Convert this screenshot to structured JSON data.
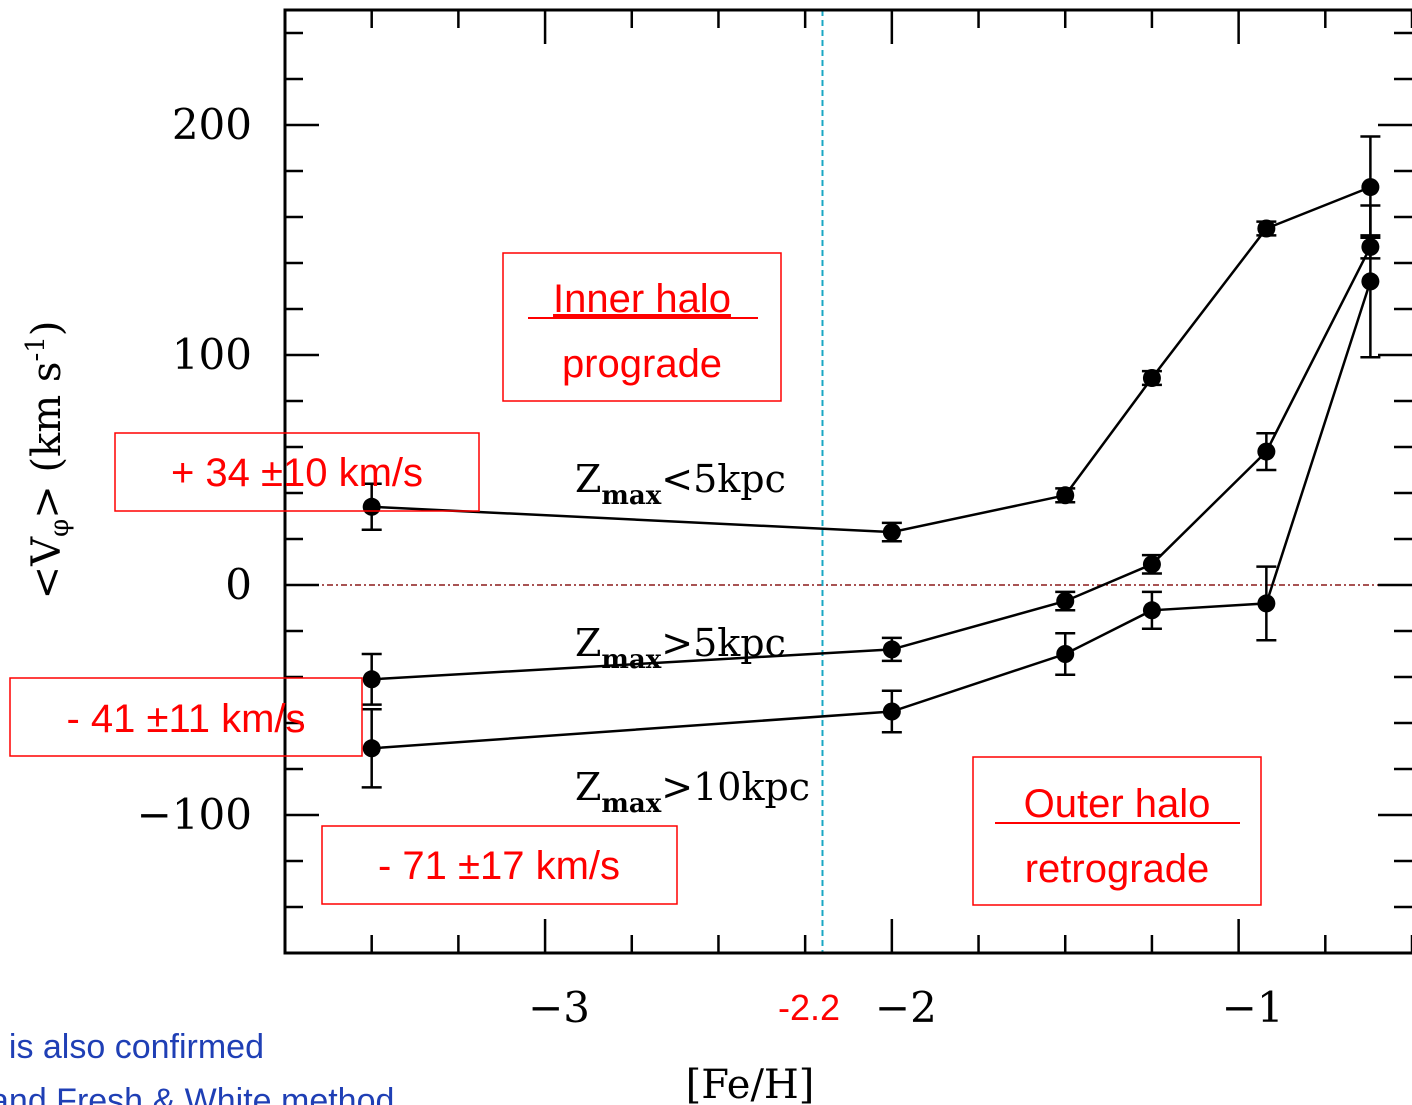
{
  "colors": {
    "axis": "#000000",
    "data": "#000000",
    "annotation": "#ff0000",
    "zero_line": "#8b1a1a",
    "threshold_line": "#1aa7c4",
    "footnote": "#1f3fb5"
  },
  "chart_data": {
    "type": "line",
    "xlabel": "[Fe/H]",
    "ylabel_main": "<V",
    "ylabel_sub": "φ",
    "ylabel_tail": ">  (km s",
    "ylabel_sup": "-1",
    "ylabel_close": ")",
    "xlim": [
      -3.75,
      -0.5
    ],
    "ylim": [
      -160,
      250
    ],
    "x_ticks": [
      {
        "value": -3,
        "label": "−3"
      },
      {
        "value": -2,
        "label": "−2"
      },
      {
        "value": -1,
        "label": "−1"
      }
    ],
    "y_ticks": [
      {
        "value": 200,
        "label": "200"
      },
      {
        "value": 100,
        "label": "100"
      },
      {
        "value": 0,
        "label": "0"
      },
      {
        "value": -100,
        "label": "−100"
      }
    ],
    "reference_lines": {
      "horizontal_y": 0,
      "vertical_x": -2.2,
      "vertical_label": "-2.2"
    },
    "series": [
      {
        "name": "Zmax<5kpc",
        "label_main": "Z",
        "label_sub": "max",
        "label_rest": "<5kpc",
        "points": [
          {
            "x": -3.5,
            "y": 34,
            "err": 10
          },
          {
            "x": -2.0,
            "y": 23,
            "err": 4
          },
          {
            "x": -1.5,
            "y": 39,
            "err": 3
          },
          {
            "x": -1.25,
            "y": 90,
            "err": 3
          },
          {
            "x": -0.92,
            "y": 155,
            "err": 3
          },
          {
            "x": -0.62,
            "y": 173,
            "err": 22
          }
        ]
      },
      {
        "name": "Zmax>5kpc",
        "label_main": "Z",
        "label_sub": "max",
        "label_rest": ">5kpc",
        "points": [
          {
            "x": -3.5,
            "y": -41,
            "err": 11
          },
          {
            "x": -2.0,
            "y": -28,
            "err": 5
          },
          {
            "x": -1.5,
            "y": -7,
            "err": 4
          },
          {
            "x": -1.25,
            "y": 9,
            "err": 4
          },
          {
            "x": -0.92,
            "y": 58,
            "err": 8
          },
          {
            "x": -0.62,
            "y": 147,
            "err": 5
          }
        ]
      },
      {
        "name": "Zmax>10kpc",
        "label_main": "Z",
        "label_sub": "max",
        "label_rest": ">10kpc",
        "points": [
          {
            "x": -3.5,
            "y": -71,
            "err": 17
          },
          {
            "x": -2.0,
            "y": -55,
            "err": 9
          },
          {
            "x": -1.5,
            "y": -30,
            "err": 9
          },
          {
            "x": -1.25,
            "y": -11,
            "err": 8
          },
          {
            "x": -0.92,
            "y": -8,
            "err": 16
          },
          {
            "x": -0.62,
            "y": 132,
            "err": 33
          }
        ]
      }
    ],
    "annotations": [
      {
        "id": "inner-halo",
        "underlined": "Inner halo",
        "text": "prograde"
      },
      {
        "id": "outer-halo",
        "underlined": "Outer halo",
        "text": "retrograde"
      },
      {
        "id": "value-1",
        "text": "+ 34 ±10 km/s"
      },
      {
        "id": "value-2",
        "text": "- 41 ±11 km/s"
      },
      {
        "id": "value-3",
        "text": "- 71 ±17 km/s"
      }
    ],
    "footnote": {
      "line1": "t is also confirmed",
      "line2": "and Fresh & White method"
    }
  }
}
